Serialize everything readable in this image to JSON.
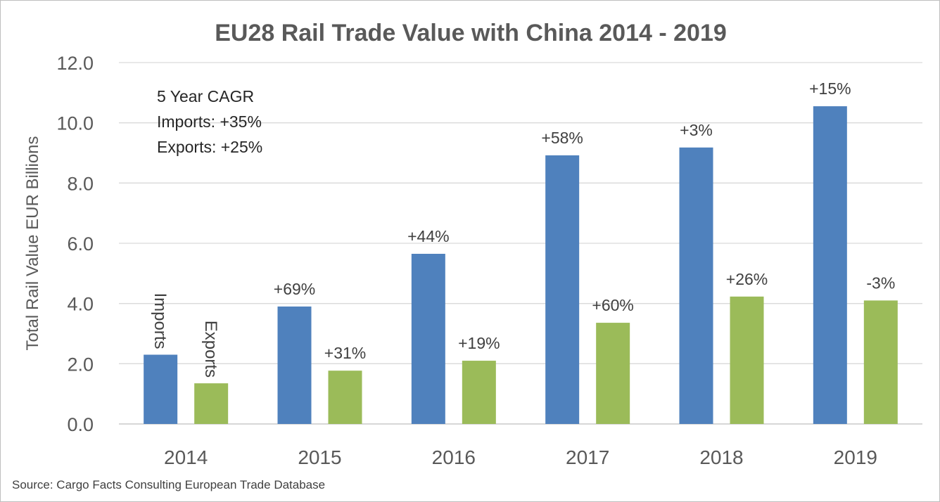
{
  "chart_data": {
    "type": "bar",
    "title": "EU28 Rail Trade Value with China 2014 - 2019",
    "ylabel": "Total Rail Value EUR Billions",
    "xlabel": "",
    "ylim": [
      0,
      12
    ],
    "yticks": [
      "0.0",
      "2.0",
      "4.0",
      "6.0",
      "8.0",
      "10.0",
      "12.0"
    ],
    "grid": true,
    "categories": [
      "2014",
      "2015",
      "2016",
      "2017",
      "2018",
      "2019"
    ],
    "series": [
      {
        "name": "Imports",
        "color": "#4f81bd",
        "values": [
          2.3,
          3.9,
          5.65,
          8.92,
          9.18,
          10.55
        ],
        "labels": [
          "",
          "+69%",
          "+44%",
          "+58%",
          "+3%",
          "+15%"
        ]
      },
      {
        "name": "Exports",
        "color": "#9bbb59",
        "values": [
          1.35,
          1.77,
          2.1,
          3.36,
          4.23,
          4.1
        ],
        "labels": [
          "",
          "+31%",
          "+19%",
          "+60%",
          "+26%",
          "-3%"
        ]
      }
    ],
    "annotation": [
      "5 Year CAGR",
      "Imports: +35%",
      "Exports: +25%"
    ],
    "source": "Source: Cargo Facts Consulting European Trade Database"
  }
}
